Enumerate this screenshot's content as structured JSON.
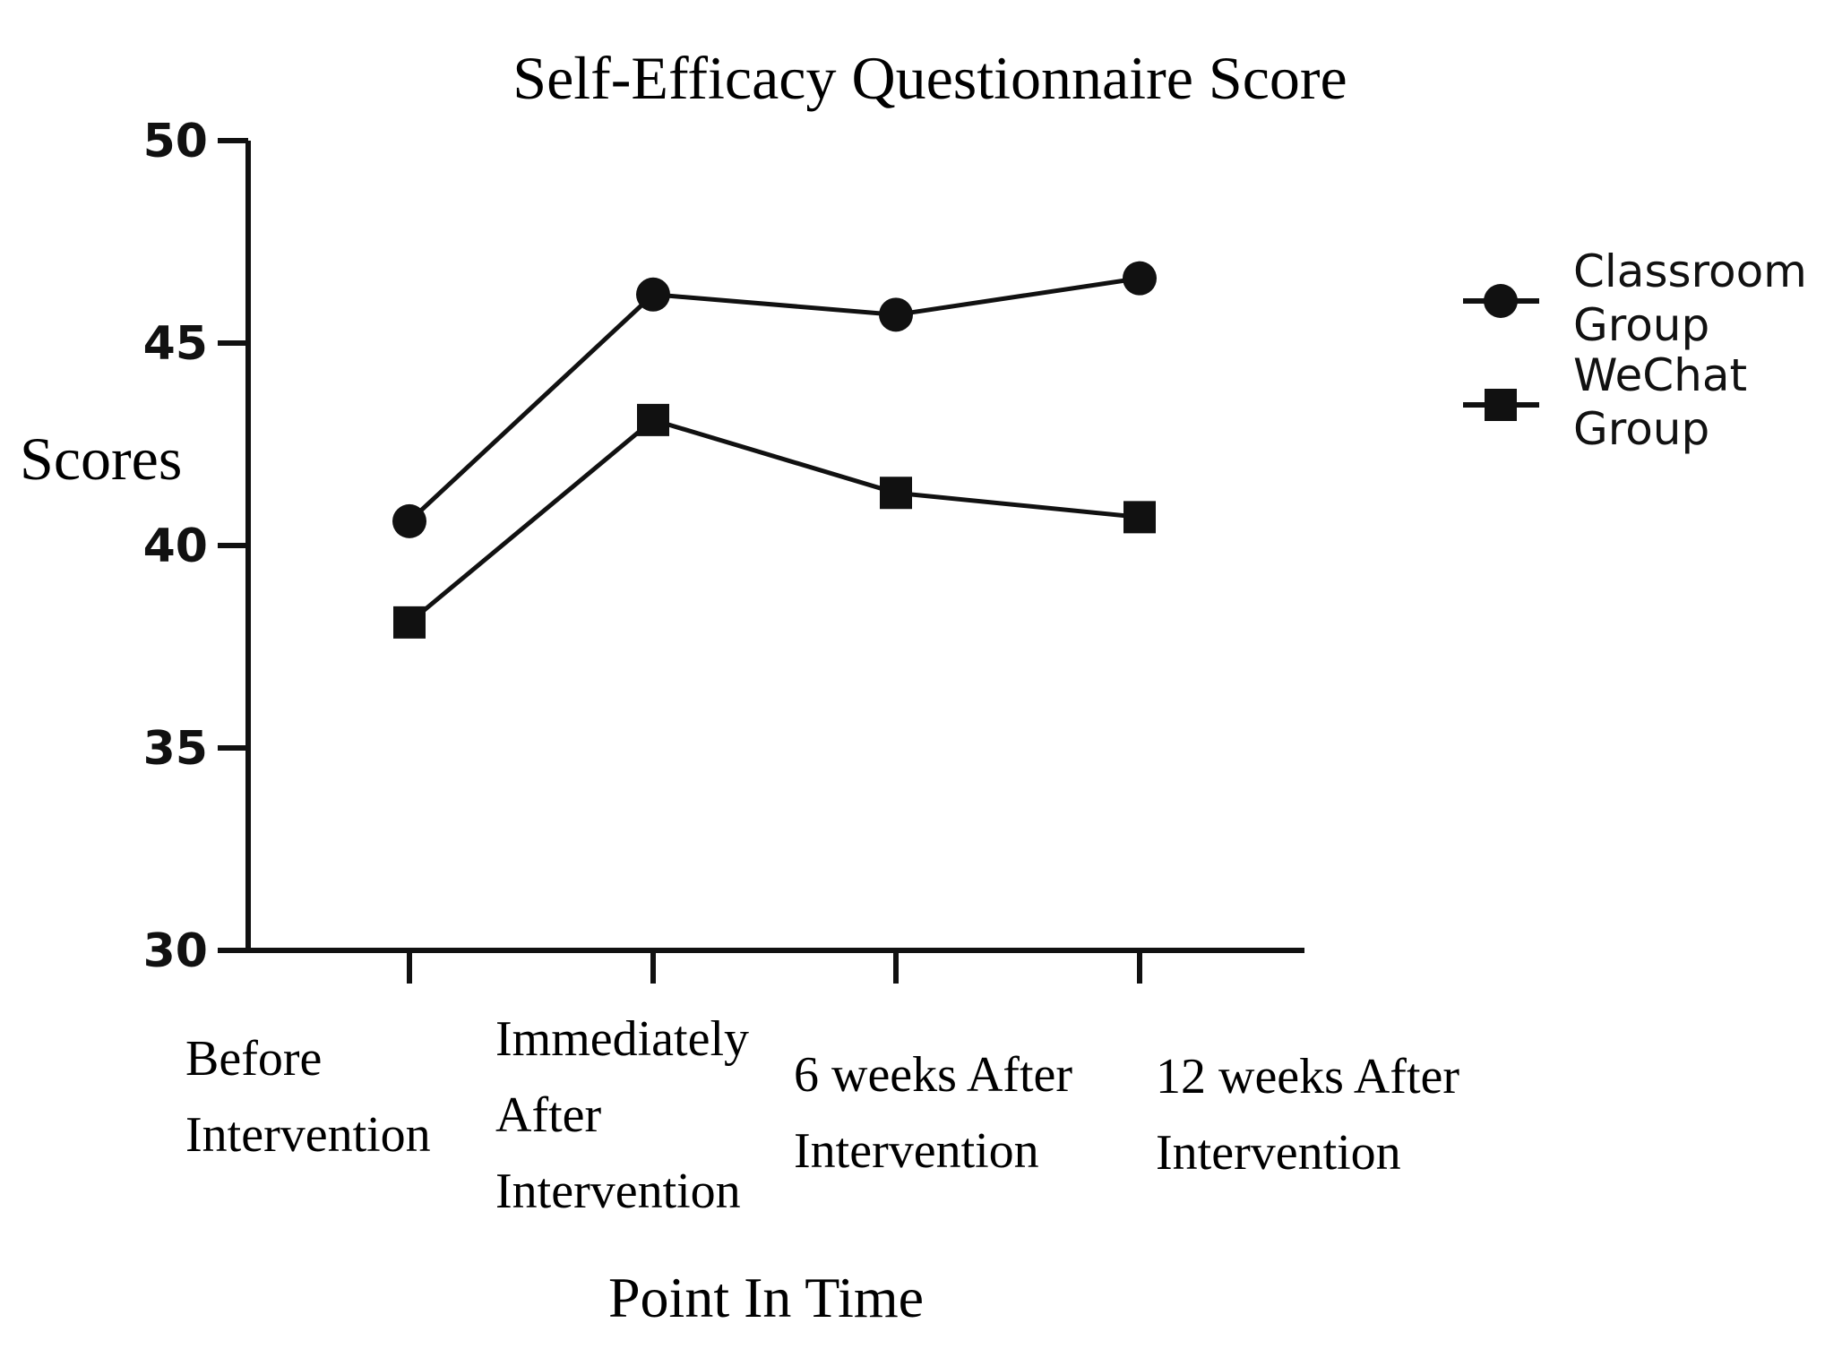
{
  "chart_data": {
    "type": "line",
    "title": "Self-Efficacy Questionnaire Score",
    "xlabel": "Point In Time",
    "ylabel": "Scores",
    "categories": [
      [
        "Before",
        "Intervention"
      ],
      [
        "Immediately",
        "After",
        "Intervention"
      ],
      [
        "6 weeks After",
        "Intervention"
      ],
      [
        "12 weeks After",
        "Intervention"
      ]
    ],
    "series": [
      {
        "name": [
          "Classroom",
          "Group"
        ],
        "marker": "circle",
        "values": [
          40.6,
          46.2,
          45.7,
          46.6
        ]
      },
      {
        "name": [
          "WeChat",
          "Group"
        ],
        "marker": "square",
        "values": [
          38.1,
          43.1,
          41.3,
          40.7
        ]
      }
    ],
    "yticks": [
      "30",
      "35",
      "40",
      "45",
      "50"
    ],
    "ylim": [
      30,
      50
    ],
    "legend_position": "right",
    "grid": false,
    "line_color": "#111111",
    "background": "#ffffff"
  }
}
